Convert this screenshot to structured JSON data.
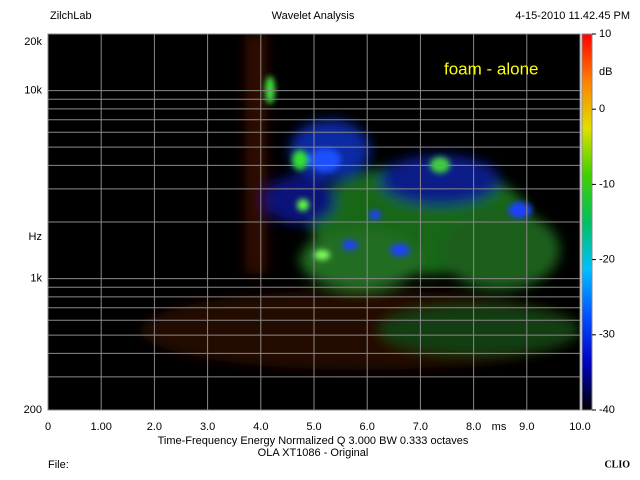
{
  "chart_data": {
    "type": "heatmap",
    "title": "Wavelet Analysis",
    "company": "ZilchLab",
    "date": "4-15-2010 11.42.45 PM",
    "annotation": "foam - alone",
    "x_unit": "ms",
    "y_label": "Hz",
    "caption": "Time-Frequency Energy   Normalized  Q 3.000 BW 0.333 octaves",
    "subcaption": "OLA XT1086 - Original",
    "file_label": "File:",
    "brand": "CLIO",
    "xlim": [
      0,
      10
    ],
    "xticks": [
      0,
      {
        "value": 1,
        "label": "1.00"
      },
      {
        "value": 2,
        "label": "2.0"
      },
      {
        "value": 3,
        "label": "3.0"
      },
      {
        "value": 4,
        "label": "4.0"
      },
      {
        "value": 5,
        "label": "5.0"
      },
      {
        "value": 6,
        "label": "6.0"
      },
      {
        "value": 7,
        "label": "7.0"
      },
      {
        "value": 8,
        "label": "8.0"
      },
      {
        "value": 9,
        "label": "9.0"
      },
      {
        "value": 10,
        "label": "10.0"
      }
    ],
    "log_y": true,
    "ylim": [
      200,
      20000
    ],
    "yticks": [
      200,
      {
        "value": 1000,
        "label": "1k"
      },
      {
        "value": 10000,
        "label": "10k"
      },
      {
        "value": 20000,
        "label": "20k"
      }
    ],
    "y_minor_grid": [
      300,
      400,
      500,
      600,
      700,
      800,
      900,
      2000,
      3000,
      4000,
      5000,
      6000,
      7000,
      8000,
      9000
    ],
    "grid": true,
    "colorbar_unit": "dB",
    "zlim": [
      -40,
      10
    ],
    "zticks": [
      10,
      0,
      -10,
      -20,
      -30,
      -40
    ],
    "colormap": [
      "#000000",
      "#0000c0",
      "#0050ff",
      "#00c0ff",
      "#00c060",
      "#40d000",
      "#e0e000",
      "#ff8000",
      "#ff0000"
    ]
  }
}
